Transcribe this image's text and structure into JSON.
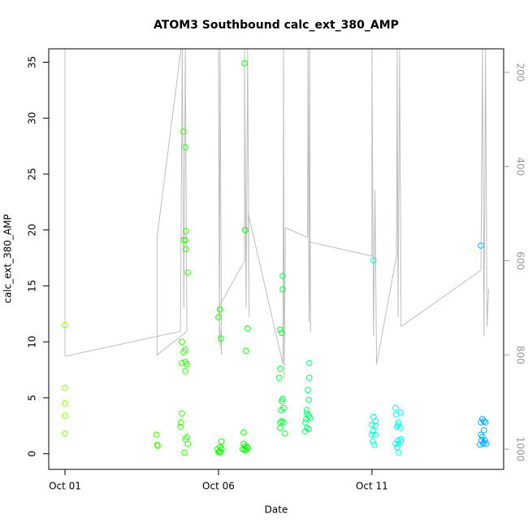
{
  "chart_data": {
    "type": "scatter",
    "title": "ATOM3 Southbound calc_ext_380_AMP",
    "xlabel": "Date",
    "ylabel": "calc_ext_380_AMP",
    "xlim": [
      -0.53,
      14.29
    ],
    "xticks": [
      {
        "value": 0,
        "label": "Oct 01"
      },
      {
        "value": 5,
        "label": "Oct 06"
      },
      {
        "value": 10,
        "label": "Oct 11"
      }
    ],
    "ylim": [
      -1.4,
      36.2
    ],
    "yticks": [
      0,
      5,
      10,
      15,
      20,
      25,
      30,
      35
    ],
    "y2lim": [
      1043,
      150
    ],
    "y2ticks": [
      200,
      400,
      600,
      800,
      1000
    ],
    "series": [
      {
        "color": "#80ff00",
        "x": [
          0,
          0,
          0,
          0,
          0
        ],
        "values": [
          11.5,
          5.9,
          4.5,
          3.4,
          1.8
        ]
      },
      {
        "color": "#40ff00",
        "x": [
          2.98,
          3.0,
          3.02
        ],
        "values": [
          1.7,
          0.8,
          0.7
        ]
      },
      {
        "color": "#2bff00",
        "x": [
          3.86,
          3.92,
          3.94,
          3.86,
          3.92,
          3.94,
          4.0,
          3.81,
          3.92,
          3.86,
          3.81,
          3.92,
          3.97,
          3.92,
          3.81,
          3.78,
          3.76,
          3.97,
          3.92,
          4.0,
          3.89
        ],
        "values": [
          28.8,
          27.4,
          19.9,
          19.1,
          19.1,
          18.3,
          16.2,
          10.0,
          9.3,
          9.1,
          8.1,
          8.2,
          8.0,
          7.4,
          3.6,
          2.8,
          2.4,
          1.5,
          1.3,
          0.9,
          0.1
        ]
      },
      {
        "color": "#15ff00",
        "x": [
          5.05,
          5.0,
          5.08,
          5.1,
          5.05,
          4.97,
          5.03,
          5.08,
          5.1,
          5.0
        ],
        "values": [
          12.9,
          12.2,
          10.3,
          1.1,
          0.6,
          0.4,
          0.2,
          0.15,
          0.4,
          0.15
        ]
      },
      {
        "color": "#00ff00",
        "x": [
          5.85,
          5.87,
          5.95,
          5.9,
          5.82,
          5.82,
          5.87,
          5.93,
          5.85,
          5.79,
          5.9,
          5.95
        ],
        "values": [
          34.9,
          20.0,
          11.2,
          9.2,
          1.9,
          0.9,
          0.7,
          0.6,
          0.4,
          0.4,
          0.3,
          0.5
        ]
      },
      {
        "color": "#00ff33",
        "x": [
          7.09,
          7.09,
          7.01,
          7.06,
          7.01,
          6.98,
          7.09,
          7.06,
          7.12,
          7.04,
          7.06,
          7.01,
          7.12,
          7.01,
          7.17
        ],
        "values": [
          15.9,
          14.7,
          11.1,
          10.8,
          7.6,
          6.8,
          4.9,
          4.7,
          4.1,
          3.9,
          2.9,
          2.8,
          2.8,
          2.3,
          1.8
        ]
      },
      {
        "color": "#00ff66",
        "x": [
          7.96,
          7.96,
          7.91,
          7.94,
          7.88,
          7.88,
          7.94,
          7.86,
          7.99,
          7.83,
          7.88,
          7.94,
          7.83
        ],
        "values": [
          8.1,
          6.8,
          5.7,
          4.8,
          3.9,
          3.6,
          3.4,
          3.1,
          3.2,
          2.8,
          2.3,
          2.2,
          2.0
        ]
      },
      {
        "color": "#00ffcc",
        "x": [
          10.05,
          10.05,
          10.11,
          10.0,
          10.11,
          10.03,
          10.0,
          10.11,
          10.03,
          10.08
        ],
        "values": [
          17.3,
          3.3,
          2.9,
          2.6,
          2.5,
          2.0,
          1.7,
          1.7,
          1.1,
          0.8
        ]
      },
      {
        "color": "#00ffe6",
        "x": [
          10.77,
          10.93,
          10.79,
          10.87,
          10.85,
          10.82,
          10.93,
          10.95,
          10.85,
          10.77,
          10.87,
          10.95,
          10.82,
          10.87
        ],
        "values": [
          4.1,
          3.7,
          3.5,
          2.8,
          2.6,
          2.4,
          2.3,
          1.3,
          1.2,
          0.9,
          0.9,
          1.1,
          0.6,
          0.1
        ]
      },
      {
        "color": "#00aaff",
        "x": [
          13.55,
          13.6,
          13.65,
          13.55,
          13.7,
          13.65,
          13.55,
          13.6,
          13.68,
          13.57,
          13.65,
          13.73,
          13.52,
          13.62
        ],
        "values": [
          18.6,
          3.1,
          2.9,
          2.8,
          2.8,
          2.1,
          1.7,
          1.5,
          1.2,
          1.2,
          1.0,
          0.9,
          0.8,
          0.9
        ]
      },
      {
        "type": "line",
        "axis": "y2",
        "color": "#bebebe",
        "x": [
          0,
          0,
          3.76,
          3.82,
          3.87,
          3.92,
          3.97,
          3.0,
          3.0,
          3.78,
          5.0,
          5.03,
          5.05,
          5.1,
          5.0,
          5.85,
          5.85,
          5.9,
          5.95,
          6.0,
          5.97,
          7.1,
          7.12,
          7.14,
          7.18,
          7.9,
          7.92,
          7.95,
          7.97,
          8.0,
          7.96,
          10.0,
          10.0,
          10.05,
          10.1,
          10.15,
          10.8,
          10.82,
          10.85,
          10.9,
          10.95,
          13.55,
          13.6,
          13.65,
          13.7,
          13.75,
          13.8
        ],
        "values": [
          150,
          803,
          750,
          150,
          700,
          150,
          750,
          800,
          550,
          150,
          150,
          780,
          150,
          800,
          700,
          600,
          150,
          700,
          150,
          720,
          500,
          820,
          150,
          850,
          530,
          550,
          150,
          730,
          150,
          750,
          560,
          590,
          150,
          760,
          450,
          820,
          590,
          150,
          720,
          150,
          740,
          620,
          150,
          760,
          150,
          740,
          660
        ]
      }
    ]
  }
}
